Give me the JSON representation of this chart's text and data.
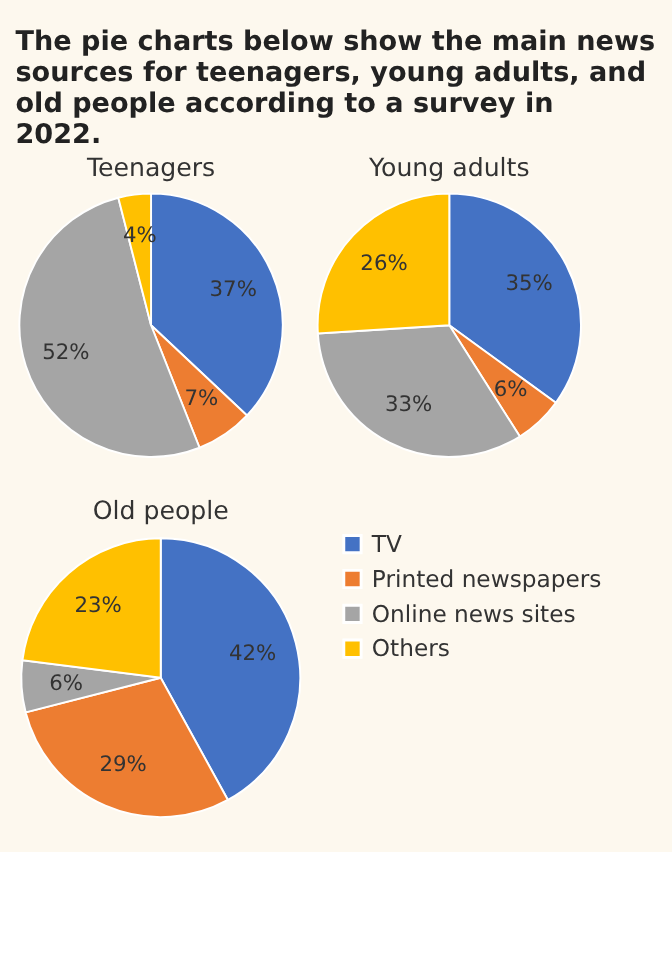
{
  "chart_data": [
    {
      "type": "pie",
      "title": "Teenagers",
      "annotations": [
        "The pie charts below show the main news sources for teenagers, young adults, and old people according to a survey in 2022."
      ],
      "categories": [
        null,
        null,
        null,
        null
      ],
      "values": [
        37,
        7,
        52,
        4
      ],
      "value_labels": [
        "37%",
        "7%",
        "52%",
        "4%"
      ],
      "colors": [
        "#4472c4",
        "#ed7d31",
        "#a5a5a5",
        "#ffc000"
      ],
      "legend": false
    },
    {
      "type": "pie",
      "title": "Young adults",
      "categories": [
        null,
        null,
        null,
        null
      ],
      "values": [
        35,
        6,
        33,
        26
      ],
      "value_labels": [
        "35%",
        "6%",
        "33%",
        "26%"
      ],
      "colors": [
        "#4472c4",
        "#ed7d31",
        "#a5a5a5",
        "#ffc000"
      ],
      "legend": false
    },
    {
      "type": "pie",
      "title": "Old people",
      "categories": [
        "TV",
        "Printed newspapers",
        "Online news sites",
        "Others"
      ],
      "values": [
        42,
        29,
        6,
        23
      ],
      "value_labels": [
        "42%",
        "29%",
        "6%",
        "23%"
      ],
      "colors": [
        "#4472c4",
        "#ed7d31",
        "#a5a5a5",
        "#ffc000"
      ],
      "legend": "right"
    }
  ]
}
